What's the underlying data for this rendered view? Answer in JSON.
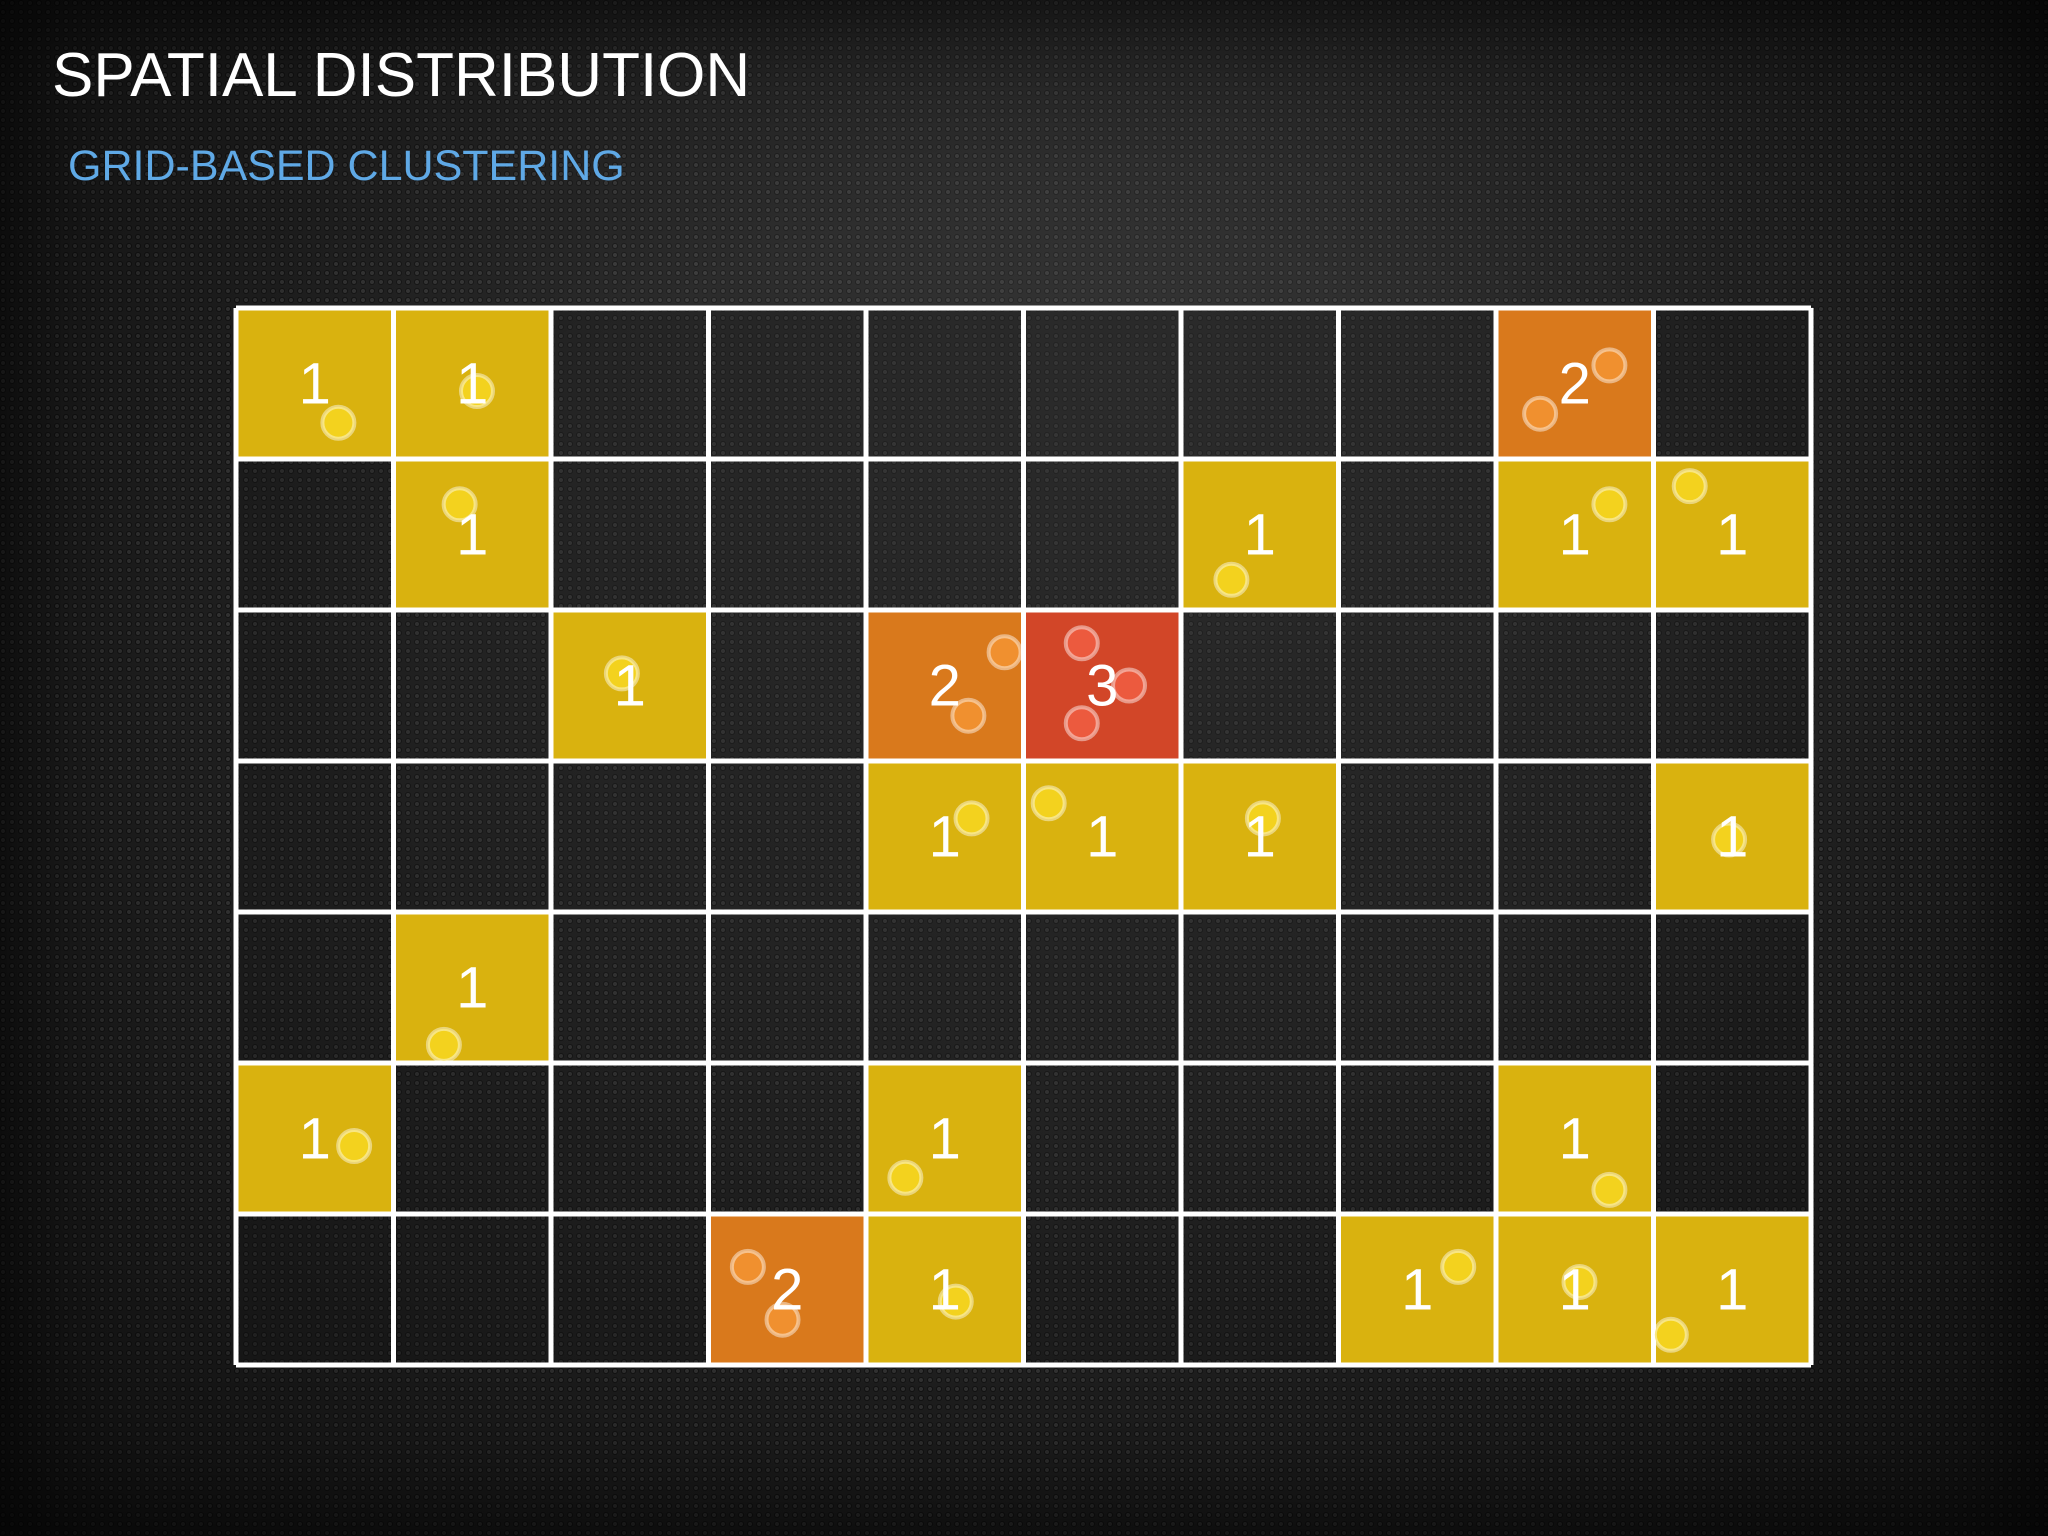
{
  "slide": {
    "title": "SPATIAL DISTRIBUTION",
    "subtitle": "GRID-BASED CLUSTERING"
  },
  "grid": {
    "rows": 7,
    "cols": 10,
    "line_color": "#ffffff",
    "fill_colors": {
      "1": "#d9b20f",
      "2": "#d9791c",
      "3": "#d24628"
    },
    "point_colors": {
      "1": "#f3d21e",
      "2": "#f0902f",
      "3": "#ec5a3e"
    },
    "counts": [
      [
        1,
        1,
        0,
        0,
        0,
        0,
        0,
        0,
        2,
        0
      ],
      [
        0,
        1,
        0,
        0,
        0,
        0,
        1,
        0,
        1,
        1
      ],
      [
        0,
        0,
        1,
        0,
        2,
        3,
        0,
        0,
        0,
        0
      ],
      [
        0,
        0,
        0,
        0,
        1,
        1,
        1,
        0,
        0,
        1
      ],
      [
        0,
        1,
        0,
        0,
        0,
        0,
        0,
        0,
        0,
        0
      ],
      [
        1,
        0,
        0,
        0,
        1,
        0,
        0,
        0,
        1,
        0
      ],
      [
        0,
        0,
        0,
        2,
        1,
        0,
        0,
        1,
        1,
        1
      ]
    ],
    "labels": [
      [
        "1",
        "1",
        "",
        "",
        "",
        "",
        "",
        "",
        "2",
        ""
      ],
      [
        "",
        "1",
        "",
        "",
        "",
        "",
        "1",
        "",
        "1",
        "1"
      ],
      [
        "",
        "",
        "1",
        "",
        "2",
        "3",
        "",
        "",
        "",
        ""
      ],
      [
        "",
        "",
        "",
        "",
        "1",
        "1",
        "1",
        "",
        "",
        "1"
      ],
      [
        "",
        "1",
        "",
        "",
        "",
        "",
        "",
        "",
        "",
        ""
      ],
      [
        "1",
        "",
        "",
        "",
        "1",
        "",
        "",
        "",
        "1",
        ""
      ],
      [
        "",
        "",
        "",
        "2",
        "1",
        "",
        "",
        "1",
        "1",
        "1"
      ]
    ]
  }
}
